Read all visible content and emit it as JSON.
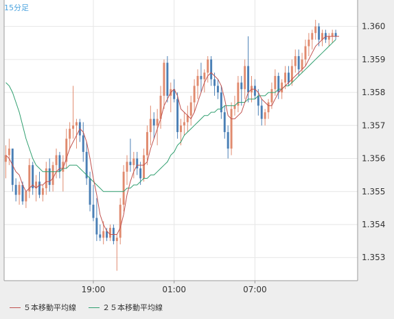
{
  "timeframe": "15分足",
  "legend": [
    {
      "label": "５本移動平均線",
      "color": "#c0504d"
    },
    {
      "label": "２５本移動平均線",
      "color": "#2e9e6e"
    }
  ],
  "colors": {
    "up": "#e08a6e",
    "down": "#4a7fb5",
    "grid": "#e6e6e6",
    "plot_bg": "#ffffff",
    "axis": "#999999"
  },
  "chart_data": {
    "type": "candlestick",
    "x_labels": [
      {
        "label": "19:00",
        "index": 26
      },
      {
        "label": "01:00",
        "index": 50
      },
      {
        "label": "07:00",
        "index": 74
      }
    ],
    "y_ticks": [
      "1.353",
      "1.354",
      "1.355",
      "1.356",
      "1.357",
      "1.358",
      "1.359",
      "1.360"
    ],
    "ylim": [
      1.3523,
      1.3608
    ],
    "n_slots": 105,
    "candles": [
      [
        1.3559,
        1.3564,
        1.3554,
        1.3561
      ],
      [
        1.3561,
        1.3566,
        1.3558,
        1.3563
      ],
      [
        1.3563,
        1.3563,
        1.355,
        1.3552
      ],
      [
        1.3552,
        1.3554,
        1.3547,
        1.3549
      ],
      [
        1.3549,
        1.3553,
        1.3546,
        1.3552
      ],
      [
        1.3552,
        1.3553,
        1.3546,
        1.3547
      ],
      [
        1.3547,
        1.355,
        1.3545,
        1.355
      ],
      [
        1.355,
        1.356,
        1.3548,
        1.3558
      ],
      [
        1.3558,
        1.3559,
        1.3549,
        1.3551
      ],
      [
        1.3551,
        1.3555,
        1.3547,
        1.3553
      ],
      [
        1.3553,
        1.3556,
        1.3548,
        1.3549
      ],
      [
        1.3549,
        1.3552,
        1.3547,
        1.3551
      ],
      [
        1.3551,
        1.3559,
        1.3549,
        1.3557
      ],
      [
        1.3557,
        1.356,
        1.355,
        1.3552
      ],
      [
        1.3552,
        1.3559,
        1.355,
        1.3558
      ],
      [
        1.3558,
        1.3563,
        1.3554,
        1.3561
      ],
      [
        1.3561,
        1.3562,
        1.3554,
        1.3556
      ],
      [
        1.3556,
        1.3561,
        1.355,
        1.3559
      ],
      [
        1.3559,
        1.3569,
        1.3557,
        1.3566
      ],
      [
        1.3566,
        1.3571,
        1.3563,
        1.3569
      ],
      [
        1.3569,
        1.3582,
        1.3566,
        1.357
      ],
      [
        1.357,
        1.3572,
        1.3563,
        1.3571
      ],
      [
        1.3571,
        1.3572,
        1.3565,
        1.3567
      ],
      [
        1.3567,
        1.3571,
        1.3559,
        1.3562
      ],
      [
        1.3562,
        1.3565,
        1.3552,
        1.3554
      ],
      [
        1.3554,
        1.3556,
        1.3544,
        1.3546
      ],
      [
        1.3546,
        1.3552,
        1.3541,
        1.3542
      ],
      [
        1.3542,
        1.3548,
        1.3535,
        1.3537
      ],
      [
        1.3537,
        1.354,
        1.3535,
        1.3536
      ],
      [
        1.3536,
        1.3541,
        1.3534,
        1.3538
      ],
      [
        1.3538,
        1.3539,
        1.3535,
        1.3536
      ],
      [
        1.3536,
        1.354,
        1.3535,
        1.3539
      ],
      [
        1.3539,
        1.354,
        1.3534,
        1.3535
      ],
      [
        1.3535,
        1.3537,
        1.3526,
        1.3536
      ],
      [
        1.3536,
        1.3548,
        1.3534,
        1.3546
      ],
      [
        1.3546,
        1.3558,
        1.3544,
        1.3556
      ],
      [
        1.3556,
        1.3561,
        1.3552,
        1.3559
      ],
      [
        1.3559,
        1.3566,
        1.3556,
        1.3558
      ],
      [
        1.3558,
        1.3562,
        1.3554,
        1.356
      ],
      [
        1.356,
        1.3562,
        1.3555,
        1.3557
      ],
      [
        1.3557,
        1.3559,
        1.3552,
        1.3554
      ],
      [
        1.3554,
        1.3563,
        1.3553,
        1.3561
      ],
      [
        1.3561,
        1.357,
        1.3558,
        1.3568
      ],
      [
        1.3568,
        1.3576,
        1.3564,
        1.3572
      ],
      [
        1.3572,
        1.3574,
        1.3566,
        1.357
      ],
      [
        1.357,
        1.3575,
        1.3564,
        1.3572
      ],
      [
        1.3572,
        1.3582,
        1.3569,
        1.3579
      ],
      [
        1.3579,
        1.359,
        1.3575,
        1.3589
      ],
      [
        1.3589,
        1.3591,
        1.3577,
        1.3579
      ],
      [
        1.3579,
        1.3583,
        1.3574,
        1.3581
      ],
      [
        1.3581,
        1.3584,
        1.3577,
        1.3578
      ],
      [
        1.3578,
        1.358,
        1.3566,
        1.3568
      ],
      [
        1.3568,
        1.3572,
        1.3564,
        1.357
      ],
      [
        1.357,
        1.3574,
        1.3567,
        1.3571
      ],
      [
        1.3571,
        1.3576,
        1.3568,
        1.3573
      ],
      [
        1.3573,
        1.3579,
        1.357,
        1.3577
      ],
      [
        1.3577,
        1.3584,
        1.3574,
        1.3582
      ],
      [
        1.3582,
        1.3587,
        1.3578,
        1.3585
      ],
      [
        1.3585,
        1.3589,
        1.358,
        1.3584
      ],
      [
        1.3584,
        1.3587,
        1.358,
        1.3586
      ],
      [
        1.3586,
        1.3591,
        1.3583,
        1.359
      ],
      [
        1.359,
        1.3591,
        1.3582,
        1.3584
      ],
      [
        1.3584,
        1.3586,
        1.3579,
        1.3582
      ],
      [
        1.3582,
        1.3584,
        1.3578,
        1.358
      ],
      [
        1.358,
        1.3582,
        1.3572,
        1.3574
      ],
      [
        1.3574,
        1.3576,
        1.3566,
        1.3568
      ],
      [
        1.3568,
        1.357,
        1.356,
        1.3563
      ],
      [
        1.3563,
        1.3577,
        1.3561,
        1.3575
      ],
      [
        1.3575,
        1.3579,
        1.3573,
        1.3576
      ],
      [
        1.3576,
        1.3585,
        1.3574,
        1.3583
      ],
      [
        1.3583,
        1.3585,
        1.3576,
        1.3581
      ],
      [
        1.3581,
        1.359,
        1.3578,
        1.3588
      ],
      [
        1.3588,
        1.3597,
        1.3577,
        1.358
      ],
      [
        1.358,
        1.3585,
        1.3577,
        1.3582
      ],
      [
        1.3582,
        1.3584,
        1.3578,
        1.3579
      ],
      [
        1.3579,
        1.3581,
        1.3573,
        1.3576
      ],
      [
        1.3576,
        1.3578,
        1.357,
        1.3572
      ],
      [
        1.3572,
        1.3575,
        1.357,
        1.3574
      ],
      [
        1.3574,
        1.3578,
        1.3572,
        1.3577
      ],
      [
        1.3577,
        1.3583,
        1.3575,
        1.3581
      ],
      [
        1.3581,
        1.3587,
        1.3579,
        1.3585
      ],
      [
        1.3585,
        1.3586,
        1.3578,
        1.358
      ],
      [
        1.358,
        1.3584,
        1.3578,
        1.3583
      ],
      [
        1.3583,
        1.3588,
        1.3581,
        1.3586
      ],
      [
        1.3586,
        1.3588,
        1.3582,
        1.3583
      ],
      [
        1.3583,
        1.359,
        1.3582,
        1.3588
      ],
      [
        1.3588,
        1.3593,
        1.3586,
        1.3591
      ],
      [
        1.3591,
        1.3593,
        1.3585,
        1.3587
      ],
      [
        1.3587,
        1.3592,
        1.3586,
        1.359
      ],
      [
        1.359,
        1.3596,
        1.3588,
        1.3594
      ],
      [
        1.3594,
        1.3598,
        1.3591,
        1.3596
      ],
      [
        1.3596,
        1.3599,
        1.3593,
        1.3598
      ],
      [
        1.3598,
        1.3602,
        1.3596,
        1.36
      ],
      [
        1.36,
        1.3601,
        1.3594,
        1.3596
      ],
      [
        1.3596,
        1.3599,
        1.3594,
        1.3598
      ],
      [
        1.3598,
        1.3599,
        1.3595,
        1.3596
      ],
      [
        1.3596,
        1.3598,
        1.3594,
        1.3597
      ],
      [
        1.3597,
        1.3599,
        1.3595,
        1.3598
      ],
      [
        1.3598,
        1.3599,
        1.3596,
        1.3597
      ]
    ],
    "ma5": [
      1.3561,
      1.356,
      1.3558,
      1.3556,
      1.3555,
      1.3552,
      1.355,
      1.3551,
      1.3552,
      1.3551,
      1.3552,
      1.3552,
      1.3553,
      1.3553,
      1.3554,
      1.3556,
      1.3557,
      1.3557,
      1.356,
      1.3563,
      1.3565,
      1.3567,
      1.3569,
      1.3568,
      1.3565,
      1.356,
      1.3554,
      1.3549,
      1.3543,
      1.354,
      1.3538,
      1.3537,
      1.3537,
      1.3537,
      1.3539,
      1.3543,
      1.3549,
      1.3553,
      1.3556,
      1.3558,
      1.3558,
      1.3558,
      1.3559,
      1.3563,
      1.3566,
      1.3569,
      1.3572,
      1.3576,
      1.3578,
      1.358,
      1.3581,
      1.3579,
      1.3575,
      1.3574,
      1.3573,
      1.3572,
      1.3574,
      1.3577,
      1.358,
      1.3583,
      1.3585,
      1.3586,
      1.3585,
      1.3584,
      1.3582,
      1.3578,
      1.3573,
      1.3572,
      1.3572,
      1.3573,
      1.3574,
      1.3577,
      1.358,
      1.3581,
      1.3581,
      1.358,
      1.3578,
      1.3577,
      1.3576,
      1.3576,
      1.3578,
      1.358,
      1.3581,
      1.3582,
      1.3583,
      1.3584,
      1.3585,
      1.3586,
      1.3587,
      1.3588,
      1.359,
      1.3592,
      1.3594,
      1.3595,
      1.3596,
      1.3597,
      1.3597,
      1.3597,
      1.3597,
      1.3597
    ],
    "ma25": [
      1.3583,
      1.3582,
      1.358,
      1.3577,
      1.3574,
      1.357,
      1.3566,
      1.3563,
      1.356,
      1.3558,
      1.3557,
      1.3556,
      1.3556,
      1.3556,
      1.3556,
      1.3556,
      1.3556,
      1.3557,
      1.3557,
      1.3558,
      1.3558,
      1.3558,
      1.3557,
      1.3556,
      1.3555,
      1.3554,
      1.3553,
      1.3552,
      1.3551,
      1.355,
      1.355,
      1.355,
      1.355,
      1.355,
      1.355,
      1.355,
      1.3551,
      1.3551,
      1.3552,
      1.3552,
      1.3553,
      1.3554,
      1.3554,
      1.3555,
      1.3555,
      1.3556,
      1.3557,
      1.3558,
      1.3559,
      1.3561,
      1.3562,
      1.3564,
      1.3565,
      1.3567,
      1.3568,
      1.3569,
      1.357,
      1.3571,
      1.3572,
      1.3573,
      1.3573,
      1.3574,
      1.3574,
      1.3575,
      1.3575,
      1.3576,
      1.3576,
      1.3576,
      1.3576,
      1.3577,
      1.3577,
      1.3577,
      1.3578,
      1.3578,
      1.3578,
      1.3579,
      1.3579,
      1.3579,
      1.358,
      1.358,
      1.358,
      1.3581,
      1.3581,
      1.3582,
      1.3582,
      1.3583,
      1.3584,
      1.3585,
      1.3586,
      1.3587,
      1.3588,
      1.3589,
      1.359,
      1.3591,
      1.3592,
      1.3593,
      1.3594,
      1.3595,
      1.3596
    ]
  }
}
